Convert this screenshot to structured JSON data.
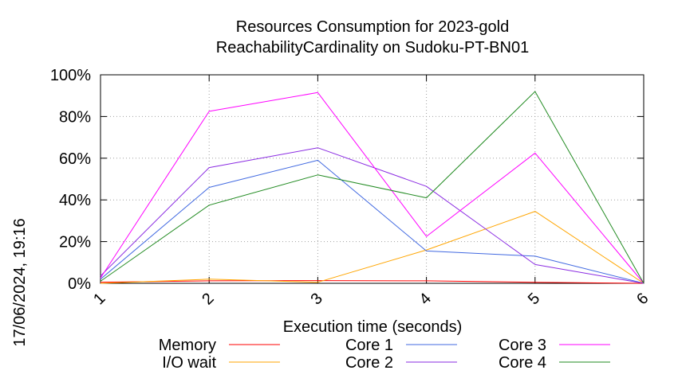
{
  "chart_data": {
    "type": "line",
    "title_line1": "Resources Consumption for 2023-gold",
    "title_line2": "ReachabilityCardinality on Sudoku-PT-BN01",
    "xlabel": "Execution time (seconds)",
    "ylabel": "",
    "side_label": "17/06/2024, 19:16",
    "x": [
      1,
      2,
      3,
      4,
      5,
      6
    ],
    "xlim": [
      1,
      6
    ],
    "ylim": [
      0,
      100
    ],
    "yticks": [
      0,
      20,
      40,
      60,
      80,
      100
    ],
    "ytick_labels": [
      "0%",
      "20%",
      "40%",
      "60%",
      "80%",
      "100%"
    ],
    "xtick_labels": [
      "1",
      "2",
      "3",
      "4",
      "5",
      "6"
    ],
    "grid": true,
    "legend_placement": "bottom",
    "series": [
      {
        "name": "Memory",
        "color": "#ff0000",
        "values": [
          0.5,
          1.2,
          1.3,
          1.2,
          0.5,
          0
        ]
      },
      {
        "name": "I/O wait",
        "color": "#ffa500",
        "values": [
          0,
          2,
          0.5,
          16,
          34.5,
          0
        ]
      },
      {
        "name": "Core 1",
        "color": "#4169e1",
        "values": [
          2,
          46,
          59,
          15.5,
          13,
          0
        ]
      },
      {
        "name": "Core 2",
        "color": "#8a2be2",
        "values": [
          3.5,
          55.5,
          65,
          46.5,
          9,
          0
        ]
      },
      {
        "name": "Core 3",
        "color": "#ff00ff",
        "values": [
          2.5,
          82.5,
          91.5,
          22.5,
          62.5,
          0
        ]
      },
      {
        "name": "Core 4",
        "color": "#228b22",
        "values": [
          1,
          37.5,
          52,
          41,
          92,
          0
        ]
      }
    ]
  }
}
